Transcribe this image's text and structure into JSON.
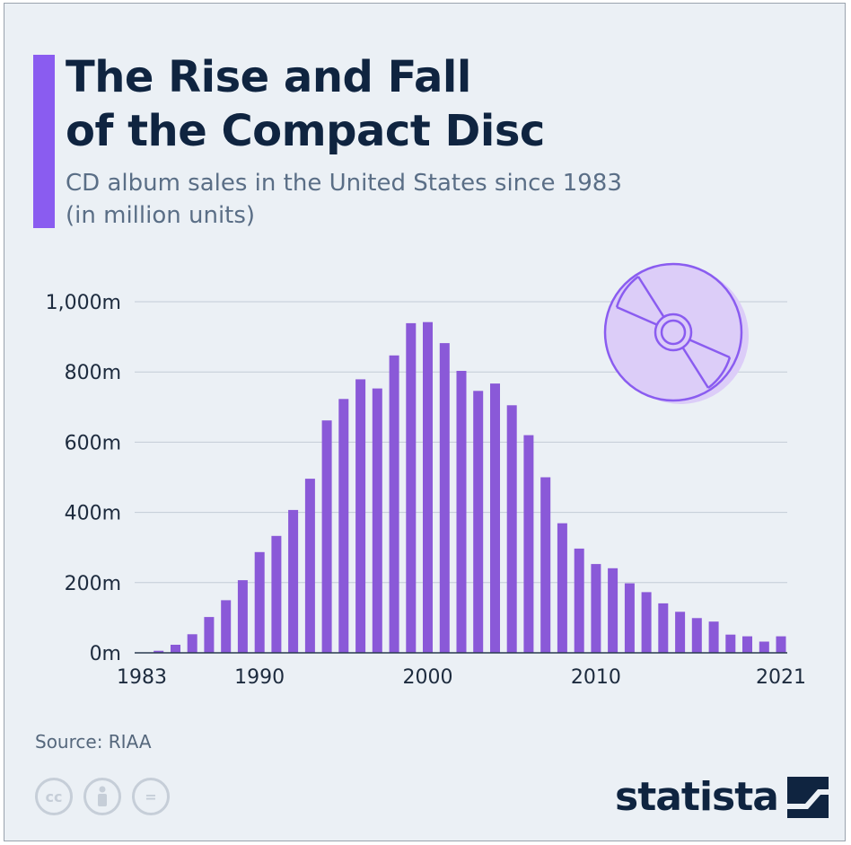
{
  "title_lines": [
    "The Rise and Fall",
    "of the Compact Disc"
  ],
  "subtitle_lines": [
    "CD album sales in the United States since 1983",
    "(in million units)"
  ],
  "source": "Source: RIAA",
  "brand": "statista",
  "cc_icons": [
    {
      "name": "cc-icon",
      "glyph": "cc"
    },
    {
      "name": "by-icon",
      "glyph": "person"
    },
    {
      "name": "nd-icon",
      "glyph": "="
    }
  ],
  "colors": {
    "bar": "#8a59d8",
    "accent": "#8a5cf0",
    "background": "#ebf0f5",
    "title": "#0f2440",
    "disc_fill": "#dccdf8",
    "disc_stroke": "#8a5cf0"
  },
  "icons": {
    "decoration": "compact-disc-icon",
    "brand_mark": "statista-logo-icon"
  },
  "chart_data": {
    "type": "bar",
    "title": "The Rise and Fall of the Compact Disc",
    "subtitle": "CD album sales in the United States since 1983 (in million units)",
    "xlabel": "",
    "ylabel": "",
    "ylim": [
      0,
      1000
    ],
    "yticks": [
      0,
      200,
      400,
      600,
      800,
      1000
    ],
    "ytick_labels": [
      "0m",
      "200m",
      "400m",
      "600m",
      "800m",
      "1,000m"
    ],
    "x_tick_labels": [
      {
        "year": 1983,
        "label": "1983"
      },
      {
        "year": 1990,
        "label": "1990"
      },
      {
        "year": 2000,
        "label": "2000"
      },
      {
        "year": 2010,
        "label": "2010"
      },
      {
        "year": 2021,
        "label": "2021"
      }
    ],
    "grid": true,
    "legend": "none",
    "categories": [
      1983,
      1984,
      1985,
      1986,
      1987,
      1988,
      1989,
      1990,
      1991,
      1992,
      1993,
      1994,
      1995,
      1996,
      1997,
      1998,
      1999,
      2000,
      2001,
      2002,
      2003,
      2004,
      2005,
      2006,
      2007,
      2008,
      2009,
      2010,
      2011,
      2012,
      2013,
      2014,
      2015,
      2016,
      2017,
      2018,
      2019,
      2020,
      2021
    ],
    "values": [
      1,
      6,
      23,
      53,
      102,
      150,
      207,
      287,
      333,
      407,
      496,
      662,
      723,
      779,
      753,
      847,
      939,
      942,
      882,
      803,
      746,
      767,
      705,
      620,
      500,
      369,
      297,
      253,
      241,
      198,
      173,
      141,
      117,
      99,
      89,
      52,
      47,
      32,
      47
    ]
  }
}
